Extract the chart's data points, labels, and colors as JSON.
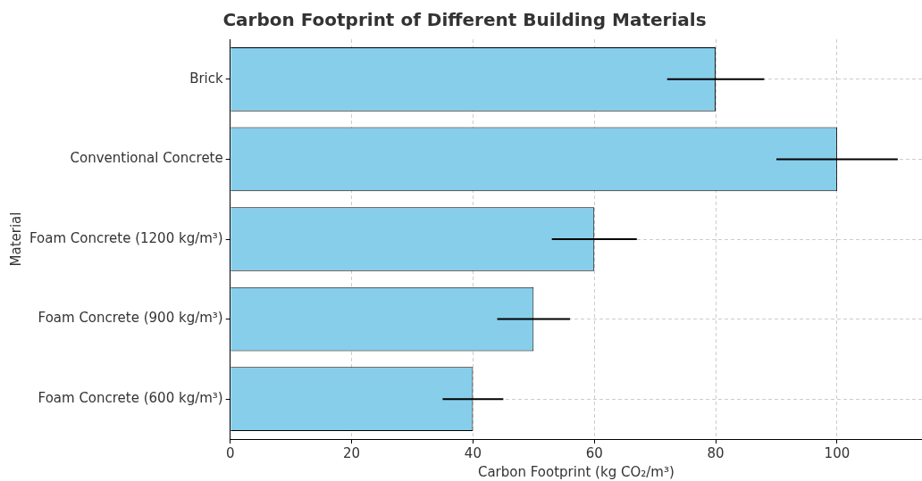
{
  "chart_data": {
    "type": "bar",
    "orientation": "horizontal",
    "title": "Carbon Footprint of Different Building Materials",
    "xlabel": "Carbon Footprint (kg CO₂/m³)",
    "ylabel": "Material",
    "categories": [
      "Brick",
      "Conventional Concrete",
      "Foam Concrete (1200 kg/m³)",
      "Foam Concrete (900 kg/m³)",
      "Foam Concrete (600 kg/m³)"
    ],
    "values": [
      80,
      100,
      60,
      50,
      40
    ],
    "errors": [
      8,
      10,
      7,
      6,
      5
    ],
    "color": "#87ceeb",
    "xlim": [
      0,
      114
    ],
    "xticks": [
      0,
      20,
      40,
      60,
      80,
      100
    ],
    "grid": true,
    "legend": false
  }
}
